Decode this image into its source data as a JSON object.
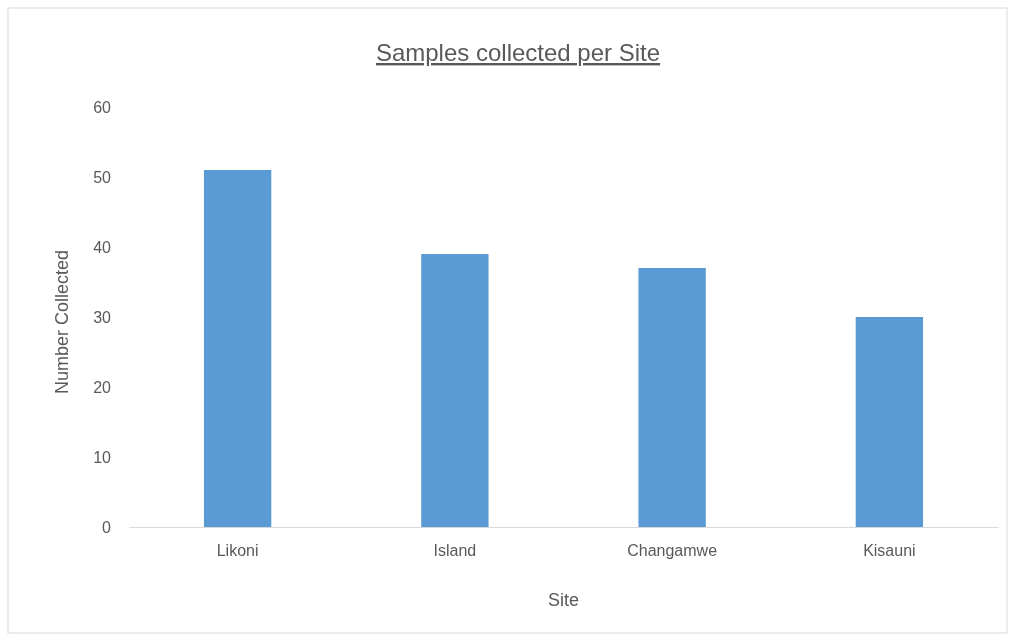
{
  "chart_data": {
    "type": "bar",
    "title": "Samples collected per Site",
    "xlabel": "Site",
    "ylabel": "Number Collected",
    "categories": [
      "Likoni",
      "Island",
      "Changamwe",
      "Kisauni"
    ],
    "values": [
      51,
      39,
      37,
      30
    ],
    "color": "#5b9bd5",
    "ylim": [
      0,
      60
    ],
    "yticks": [
      0,
      10,
      20,
      30,
      40,
      50,
      60
    ],
    "grid": false
  }
}
